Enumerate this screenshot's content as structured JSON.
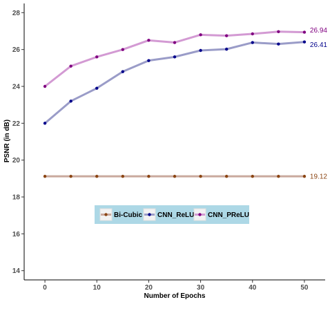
{
  "chart_data": {
    "type": "line",
    "title": "",
    "xlabel": "Number of Epochs",
    "ylabel": "PSNR (in dB)",
    "xlim": [
      -4,
      54
    ],
    "ylim": [
      13.5,
      28.5
    ],
    "x_ticks": [
      0,
      10,
      20,
      30,
      40,
      50
    ],
    "y_ticks": [
      14,
      16,
      18,
      20,
      22,
      24,
      26,
      28
    ],
    "x": [
      0,
      5,
      10,
      15,
      20,
      25,
      30,
      35,
      40,
      45,
      50
    ],
    "grid": false,
    "legend_position": "center",
    "legend_background": "#add8e6",
    "series": [
      {
        "name": "Bi-Cubic",
        "values": [
          19.12,
          19.12,
          19.12,
          19.12,
          19.12,
          19.12,
          19.12,
          19.12,
          19.12,
          19.12,
          19.12
        ],
        "line_color": "#c9a99d",
        "point_color": "#8b4513",
        "end_label": "19.12"
      },
      {
        "name": "CNN_ReLU",
        "values": [
          22.0,
          23.2,
          23.9,
          24.8,
          25.4,
          25.6,
          25.95,
          26.02,
          26.38,
          26.3,
          26.41
        ],
        "line_color": "#9a9cc8",
        "point_color": "#00008b",
        "end_label": "26.41"
      },
      {
        "name": "CNN_PReLU",
        "values": [
          24.0,
          25.1,
          25.6,
          26.0,
          26.5,
          26.38,
          26.8,
          26.75,
          26.85,
          26.97,
          26.94
        ],
        "line_color": "#d39ad3",
        "point_color": "#800080",
        "end_label": "26.94"
      }
    ]
  }
}
